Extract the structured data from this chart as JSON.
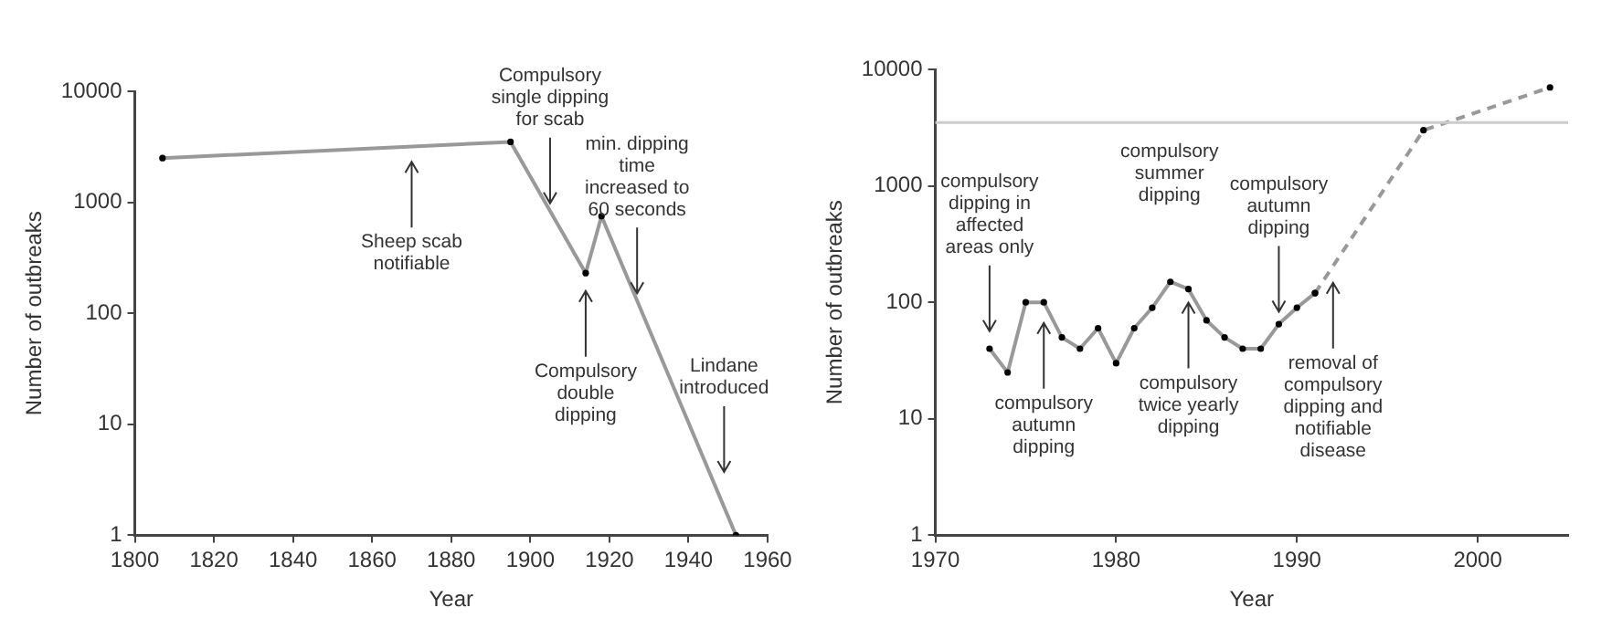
{
  "chart_data": [
    {
      "type": "line",
      "xlabel": "Year",
      "ylabel": "Number of outbreaks",
      "log": "y",
      "xlim": [
        1800,
        1960
      ],
      "xticks": [
        1800,
        1820,
        1840,
        1860,
        1880,
        1900,
        1920,
        1940,
        1960
      ],
      "ylim": [
        1,
        10000
      ],
      "yticks": [
        1,
        10,
        100,
        1000,
        10000
      ],
      "grid": false,
      "legend": false,
      "marker": "circle",
      "series": [
        {
          "color": "#999999",
          "x": [
            1807,
            1895,
            1914,
            1918,
            1952
          ],
          "values": [
            2500,
            3500,
            230,
            750,
            1
          ]
        }
      ],
      "annotations": [
        {
          "text": "Sheep scab notifiable",
          "x": 1870,
          "y": 2700
        },
        {
          "text": "Compulsory single dipping for scab",
          "x": 1905,
          "y": 840
        },
        {
          "text": "Compulsory double dipping",
          "x": 1914,
          "y": 185
        },
        {
          "text": "min. dipping time increased to 60 seconds",
          "x": 1927,
          "y": 130
        },
        {
          "text": "Lindane introduced",
          "x": 1949,
          "y": 3.2
        }
      ]
    },
    {
      "type": "line",
      "xlabel": "Year",
      "ylabel": "Number of outbreaks",
      "log": "y",
      "xlim": [
        1970,
        2005
      ],
      "xticks": [
        1970,
        1980,
        1990,
        2000
      ],
      "ylim": [
        1,
        10000
      ],
      "yticks": [
        1,
        10,
        100,
        1000,
        10000
      ],
      "grid": false,
      "legend": false,
      "marker": "circle",
      "ref_lines": [
        {
          "axis": "y",
          "value": 3500,
          "color": "#cccccc"
        }
      ],
      "series": [
        {
          "color": "#999999",
          "line_style": "solid",
          "x": [
            1973,
            1974,
            1975,
            1976,
            1977,
            1978,
            1979,
            1980,
            1981,
            1982,
            1983,
            1984,
            1985,
            1986,
            1987,
            1988,
            1989,
            1990,
            1991
          ],
          "values": [
            40,
            25,
            100,
            100,
            50,
            40,
            60,
            30,
            60,
            90,
            150,
            130,
            70,
            50,
            40,
            40,
            65,
            90,
            120
          ]
        },
        {
          "color": "#999999",
          "line_style": "dashed",
          "x": [
            1991,
            1997,
            2004
          ],
          "values": [
            120,
            3000,
            7000
          ]
        }
      ],
      "annotations": [
        {
          "text": "compulsory dipping in affected areas only",
          "x": 1973,
          "y": 49
        },
        {
          "text": "compulsory autumn dipping",
          "x": 1976,
          "y": 77
        },
        "compulsory summer dipping",
        {
          "text": "compulsory twice yearly dipping",
          "x": 1984,
          "y": 115
        },
        {
          "text": "compulsory autumn dipping",
          "x": 1989,
          "y": 72
        },
        {
          "text": "removal of compulsory dipping and notifiable disease",
          "x": 1992,
          "y": 170
        }
      ]
    }
  ]
}
